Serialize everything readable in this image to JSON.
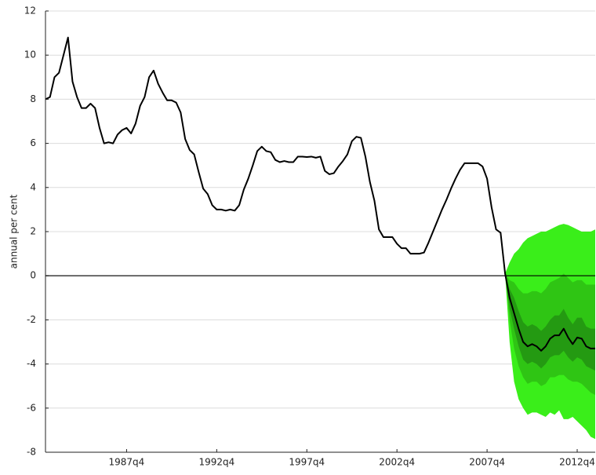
{
  "chart_data": {
    "type": "fan",
    "y_label": "annual per cent",
    "categories": [
      null,
      null,
      null,
      null,
      null,
      null,
      null,
      null,
      null,
      null,
      null,
      null,
      null,
      null,
      null,
      null,
      null,
      null,
      "1987q4",
      null,
      null,
      null,
      null,
      null,
      null,
      null,
      null,
      null,
      null,
      null,
      null,
      null,
      null,
      null,
      null,
      null,
      null,
      null,
      "1992q4",
      null,
      null,
      null,
      null,
      null,
      null,
      null,
      null,
      null,
      null,
      null,
      null,
      null,
      null,
      null,
      null,
      null,
      null,
      null,
      "1997q4",
      null,
      null,
      null,
      null,
      null,
      null,
      null,
      null,
      null,
      null,
      null,
      null,
      null,
      null,
      null,
      null,
      null,
      null,
      null,
      "2002q4",
      null,
      null,
      null,
      null,
      null,
      null,
      null,
      null,
      null,
      null,
      null,
      null,
      null,
      null,
      null,
      null,
      null,
      null,
      null,
      "2007q4",
      null,
      null,
      null,
      null,
      null,
      null,
      null,
      null,
      null,
      null,
      null,
      null,
      null,
      null,
      null,
      null,
      null,
      null,
      null,
      "2012q4",
      null,
      null,
      null,
      null
    ],
    "series": [
      {
        "color": "#000000",
        "values": [
          8.0,
          8.1,
          9.0,
          9.2,
          10.0,
          10.8,
          8.8,
          8.1,
          7.6,
          7.6,
          7.8,
          7.6,
          6.7,
          6.0,
          6.05,
          6.0,
          6.4,
          6.6,
          6.7,
          6.45,
          6.9,
          7.7,
          8.1,
          9.0,
          9.3,
          8.7,
          8.3,
          7.95,
          7.95,
          7.85,
          7.4,
          6.2,
          5.7,
          5.5,
          4.7,
          3.95,
          3.7,
          3.2,
          3.0,
          3.0,
          2.95,
          3.0,
          2.95,
          3.2,
          3.9,
          4.4,
          5.0,
          5.65,
          5.85,
          5.65,
          5.6,
          5.25,
          5.15,
          5.2,
          5.15,
          5.15,
          5.4,
          5.4,
          5.38,
          5.4,
          5.35,
          5.4,
          4.75,
          4.6,
          4.65,
          4.95,
          5.2,
          5.5,
          6.1,
          6.3,
          6.25,
          5.4,
          4.25,
          3.4,
          2.1,
          1.75,
          1.75,
          1.75,
          1.45,
          1.25,
          1.25,
          1.0,
          1.0,
          1.0,
          1.05,
          1.5,
          2.0,
          2.5,
          3.0,
          3.45,
          3.95,
          4.4,
          4.8,
          5.1,
          5.1,
          5.1,
          5.1,
          4.95,
          4.4,
          3.1,
          2.1,
          1.95,
          0.1,
          -1.0,
          -1.7,
          -2.4,
          -3.0,
          -3.2,
          -3.1,
          -3.2,
          -3.4,
          -3.2,
          -2.85,
          -2.7,
          -2.7,
          -2.4,
          -2.8,
          -3.1,
          -2.8,
          -2.85,
          -3.2,
          -3.3,
          -3.3
        ]
      }
    ],
    "bands": [
      {
        "color": "#3aee1a",
        "lower": [
          null,
          null,
          null,
          null,
          null,
          null,
          null,
          null,
          null,
          null,
          null,
          null,
          null,
          null,
          null,
          null,
          null,
          null,
          null,
          null,
          null,
          null,
          null,
          null,
          null,
          null,
          null,
          null,
          null,
          null,
          null,
          null,
          null,
          null,
          null,
          null,
          null,
          null,
          null,
          null,
          null,
          null,
          null,
          null,
          null,
          null,
          null,
          null,
          null,
          null,
          null,
          null,
          null,
          null,
          null,
          null,
          null,
          null,
          null,
          null,
          null,
          null,
          null,
          null,
          null,
          null,
          null,
          null,
          null,
          null,
          null,
          null,
          null,
          null,
          null,
          null,
          null,
          null,
          null,
          null,
          null,
          null,
          null,
          null,
          null,
          null,
          null,
          null,
          null,
          null,
          null,
          null,
          null,
          null,
          null,
          null,
          null,
          null,
          null,
          null,
          null,
          null,
          0.1,
          -3.0,
          -4.8,
          -5.6,
          -6.0,
          -6.3,
          -6.2,
          -6.2,
          -6.3,
          -6.4,
          -6.2,
          -6.3,
          -6.1,
          -6.5,
          -6.5,
          -6.4,
          -6.6,
          -6.8,
          -7.0,
          -7.3,
          -7.4
        ],
        "upper": [
          null,
          null,
          null,
          null,
          null,
          null,
          null,
          null,
          null,
          null,
          null,
          null,
          null,
          null,
          null,
          null,
          null,
          null,
          null,
          null,
          null,
          null,
          null,
          null,
          null,
          null,
          null,
          null,
          null,
          null,
          null,
          null,
          null,
          null,
          null,
          null,
          null,
          null,
          null,
          null,
          null,
          null,
          null,
          null,
          null,
          null,
          null,
          null,
          null,
          null,
          null,
          null,
          null,
          null,
          null,
          null,
          null,
          null,
          null,
          null,
          null,
          null,
          null,
          null,
          null,
          null,
          null,
          null,
          null,
          null,
          null,
          null,
          null,
          null,
          null,
          null,
          null,
          null,
          null,
          null,
          null,
          null,
          null,
          null,
          null,
          null,
          null,
          null,
          null,
          null,
          null,
          null,
          null,
          null,
          null,
          null,
          null,
          null,
          null,
          null,
          null,
          null,
          0.1,
          0.6,
          1.0,
          1.2,
          1.5,
          1.7,
          1.8,
          1.9,
          2.0,
          2.0,
          2.1,
          2.2,
          2.3,
          2.35,
          2.3,
          2.2,
          2.1,
          2.0,
          2.0,
          2.0,
          2.1
        ]
      },
      {
        "color": "#2fc514",
        "lower": [
          null,
          null,
          null,
          null,
          null,
          null,
          null,
          null,
          null,
          null,
          null,
          null,
          null,
          null,
          null,
          null,
          null,
          null,
          null,
          null,
          null,
          null,
          null,
          null,
          null,
          null,
          null,
          null,
          null,
          null,
          null,
          null,
          null,
          null,
          null,
          null,
          null,
          null,
          null,
          null,
          null,
          null,
          null,
          null,
          null,
          null,
          null,
          null,
          null,
          null,
          null,
          null,
          null,
          null,
          null,
          null,
          null,
          null,
          null,
          null,
          null,
          null,
          null,
          null,
          null,
          null,
          null,
          null,
          null,
          null,
          null,
          null,
          null,
          null,
          null,
          null,
          null,
          null,
          null,
          null,
          null,
          null,
          null,
          null,
          null,
          null,
          null,
          null,
          null,
          null,
          null,
          null,
          null,
          null,
          null,
          null,
          null,
          null,
          null,
          null,
          null,
          null,
          0.1,
          -2.0,
          -3.3,
          -4.1,
          -4.6,
          -4.9,
          -4.8,
          -4.8,
          -5.0,
          -4.9,
          -4.6,
          -4.6,
          -4.5,
          -4.5,
          -4.7,
          -4.8,
          -4.8,
          -4.9,
          -5.1,
          -5.3,
          -5.4
        ],
        "upper": [
          null,
          null,
          null,
          null,
          null,
          null,
          null,
          null,
          null,
          null,
          null,
          null,
          null,
          null,
          null,
          null,
          null,
          null,
          null,
          null,
          null,
          null,
          null,
          null,
          null,
          null,
          null,
          null,
          null,
          null,
          null,
          null,
          null,
          null,
          null,
          null,
          null,
          null,
          null,
          null,
          null,
          null,
          null,
          null,
          null,
          null,
          null,
          null,
          null,
          null,
          null,
          null,
          null,
          null,
          null,
          null,
          null,
          null,
          null,
          null,
          null,
          null,
          null,
          null,
          null,
          null,
          null,
          null,
          null,
          null,
          null,
          null,
          null,
          null,
          null,
          null,
          null,
          null,
          null,
          null,
          null,
          null,
          null,
          null,
          null,
          null,
          null,
          null,
          null,
          null,
          null,
          null,
          null,
          null,
          null,
          null,
          null,
          null,
          null,
          null,
          null,
          null,
          0.1,
          -0.2,
          -0.3,
          -0.6,
          -0.8,
          -0.8,
          -0.7,
          -0.7,
          -0.8,
          -0.6,
          -0.3,
          -0.2,
          -0.1,
          0.1,
          -0.1,
          -0.3,
          -0.2,
          -0.2,
          -0.4,
          -0.4,
          -0.4
        ]
      },
      {
        "color": "#249a12",
        "lower": [
          null,
          null,
          null,
          null,
          null,
          null,
          null,
          null,
          null,
          null,
          null,
          null,
          null,
          null,
          null,
          null,
          null,
          null,
          null,
          null,
          null,
          null,
          null,
          null,
          null,
          null,
          null,
          null,
          null,
          null,
          null,
          null,
          null,
          null,
          null,
          null,
          null,
          null,
          null,
          null,
          null,
          null,
          null,
          null,
          null,
          null,
          null,
          null,
          null,
          null,
          null,
          null,
          null,
          null,
          null,
          null,
          null,
          null,
          null,
          null,
          null,
          null,
          null,
          null,
          null,
          null,
          null,
          null,
          null,
          null,
          null,
          null,
          null,
          null,
          null,
          null,
          null,
          null,
          null,
          null,
          null,
          null,
          null,
          null,
          null,
          null,
          null,
          null,
          null,
          null,
          null,
          null,
          null,
          null,
          null,
          null,
          null,
          null,
          null,
          null,
          null,
          null,
          0.1,
          -1.5,
          -2.4,
          -3.2,
          -3.8,
          -4.0,
          -3.9,
          -4.0,
          -4.2,
          -4.0,
          -3.7,
          -3.6,
          -3.6,
          -3.4,
          -3.7,
          -3.9,
          -3.7,
          -3.8,
          -4.1,
          -4.2,
          -4.3
        ],
        "upper": [
          null,
          null,
          null,
          null,
          null,
          null,
          null,
          null,
          null,
          null,
          null,
          null,
          null,
          null,
          null,
          null,
          null,
          null,
          null,
          null,
          null,
          null,
          null,
          null,
          null,
          null,
          null,
          null,
          null,
          null,
          null,
          null,
          null,
          null,
          null,
          null,
          null,
          null,
          null,
          null,
          null,
          null,
          null,
          null,
          null,
          null,
          null,
          null,
          null,
          null,
          null,
          null,
          null,
          null,
          null,
          null,
          null,
          null,
          null,
          null,
          null,
          null,
          null,
          null,
          null,
          null,
          null,
          null,
          null,
          null,
          null,
          null,
          null,
          null,
          null,
          null,
          null,
          null,
          null,
          null,
          null,
          null,
          null,
          null,
          null,
          null,
          null,
          null,
          null,
          null,
          null,
          null,
          null,
          null,
          null,
          null,
          null,
          null,
          null,
          null,
          null,
          null,
          0.1,
          -0.6,
          -1.0,
          -1.6,
          -2.1,
          -2.3,
          -2.2,
          -2.3,
          -2.5,
          -2.3,
          -2.0,
          -1.8,
          -1.8,
          -1.5,
          -1.9,
          -2.2,
          -1.9,
          -1.9,
          -2.3,
          -2.4,
          -2.4
        ]
      }
    ],
    "ylim": [
      -8,
      12
    ],
    "yticks": [
      -8,
      -6,
      -4,
      -2,
      0,
      2,
      4,
      6,
      8,
      10,
      12
    ],
    "grid": true,
    "zero_line": true
  }
}
